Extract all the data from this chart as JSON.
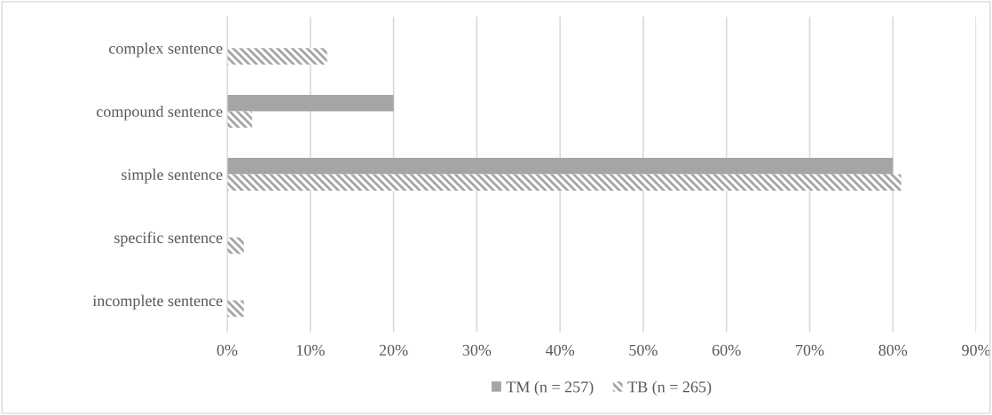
{
  "chart_data": {
    "type": "bar",
    "orientation": "horizontal",
    "categories": [
      "complex sentence",
      "compound sentence",
      "simple sentence",
      "specific sentence",
      "incomplete sentence"
    ],
    "series": [
      {
        "name": "TM (n = 257)",
        "color": "#a5a5a5",
        "values": [
          0,
          20,
          80,
          0,
          0
        ]
      },
      {
        "name": "TB (n = 265)",
        "color": "#a5a5a5",
        "values": [
          12,
          3,
          81,
          2,
          2
        ]
      }
    ],
    "xlim": [
      0,
      90
    ],
    "xticks": [
      {
        "value": 0,
        "label": "0%"
      },
      {
        "value": 10,
        "label": "10%"
      },
      {
        "value": 20,
        "label": "20%"
      },
      {
        "value": 30,
        "label": "30%"
      },
      {
        "value": 40,
        "label": "40%"
      },
      {
        "value": 50,
        "label": "50%"
      },
      {
        "value": 60,
        "label": "60%"
      },
      {
        "value": 70,
        "label": "70%"
      },
      {
        "value": 80,
        "label": "80%"
      },
      {
        "value": 90,
        "label": "90%"
      }
    ],
    "grid": "x",
    "legend": "bottom"
  }
}
